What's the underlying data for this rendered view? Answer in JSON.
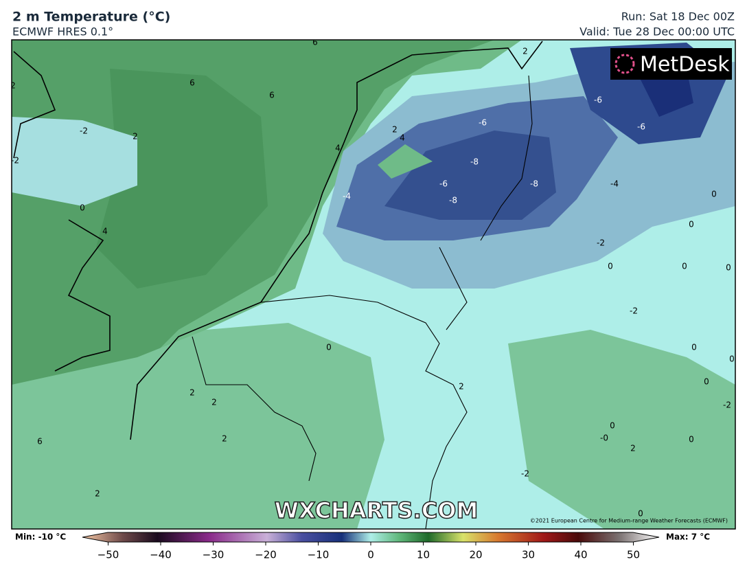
{
  "header": {
    "title": "2 m Temperature (°C)",
    "model": "ECMWF HRES 0.1°",
    "run": "Run: Sat 18 Dec 00Z",
    "valid": "Valid: Tue 28 Dec 00:00 UTC"
  },
  "map": {
    "contour_labels": [
      6,
      6,
      6,
      2,
      -2,
      2,
      -2,
      0,
      4,
      2,
      4,
      4,
      -6,
      -6,
      -6,
      -8,
      -6,
      -8,
      -4,
      -8,
      -4,
      0,
      0,
      -2,
      0,
      0,
      0,
      -2,
      0,
      0,
      0,
      0,
      2,
      2,
      2,
      -2,
      0,
      "-0",
      2,
      0,
      6,
      2,
      -2,
      2,
      0,
      2
    ],
    "watermark": "WXCHARTS.COM",
    "copyright": "©2021 European Centre for Medium-range Weather Forecasts (ECMWF)",
    "logo": "MetDesk"
  },
  "colorbar": {
    "min_label": "Min: -10 °C",
    "max_label": "Max: 7 °C",
    "ticks": [
      {
        "value": -50,
        "label": "−50"
      },
      {
        "value": -40,
        "label": "−40"
      },
      {
        "value": -30,
        "label": "−30"
      },
      {
        "value": -20,
        "label": "−20"
      },
      {
        "value": -10,
        "label": "−10"
      },
      0,
      10,
      20,
      30,
      40,
      50
    ]
  }
}
